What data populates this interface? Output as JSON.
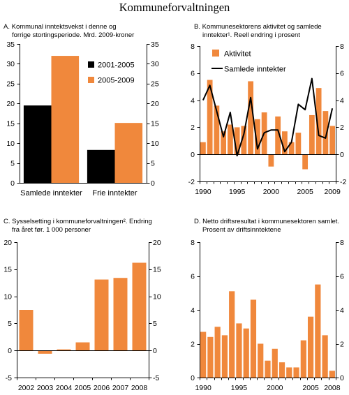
{
  "page": {
    "title": "Kommuneforvaltningen"
  },
  "chart_data": [
    {
      "type": "bar",
      "title_lines": [
        "A. Kommunal inntektsvekst i denne og",
        "forrige stortingsperiode. Mrd. 2009-kroner"
      ],
      "categories": [
        "Samlede inntekter",
        "Frie inntekter"
      ],
      "series": [
        {
          "name": "2001-2005",
          "type": "bar",
          "color": "#000000",
          "values": [
            19.5,
            8.3
          ]
        },
        {
          "name": "2005-2009",
          "type": "bar",
          "color": "#f0883c",
          "values": [
            32.0,
            15.1
          ]
        }
      ],
      "ylim": [
        0,
        35
      ],
      "yticks": [
        0,
        5,
        10,
        15,
        20,
        25,
        30,
        35
      ],
      "legend": "top-center",
      "grid": false
    },
    {
      "type": "bar",
      "title_lines": [
        "B. Kommunesektorens aktivitet og samlede",
        "inntekter¹. Reell endring i prosent"
      ],
      "x": [
        1990,
        1991,
        1992,
        1993,
        1994,
        1995,
        1996,
        1997,
        1998,
        1999,
        2000,
        2001,
        2002,
        2003,
        2004,
        2005,
        2006,
        2007,
        2008,
        2009
      ],
      "xticks": [
        1990,
        1995,
        2000,
        2005,
        2009
      ],
      "series": [
        {
          "name": "Aktivitet",
          "type": "bar",
          "color": "#f0883c",
          "values": [
            0.9,
            5.5,
            3.6,
            1.7,
            2.2,
            2.0,
            2.1,
            5.4,
            2.6,
            3.1,
            -0.9,
            2.8,
            1.7,
            0.9,
            1.6,
            -1.1,
            2.9,
            4.9,
            3.2,
            2.1
          ]
        },
        {
          "name": "Samlede inntekter",
          "type": "line",
          "color": "#000000",
          "values": [
            4.0,
            5.1,
            3.2,
            1.3,
            3.1,
            -0.1,
            1.5,
            4.2,
            0.4,
            1.6,
            1.8,
            1.8,
            0.2,
            0.9,
            3.7,
            3.3,
            5.6,
            1.4,
            1.2,
            3.4
          ]
        }
      ],
      "ylim": [
        -2,
        8
      ],
      "yticks": [
        -2,
        0,
        2,
        4,
        6,
        8
      ],
      "legend": "top-left",
      "grid": false
    },
    {
      "type": "bar",
      "title_lines": [
        "C. Sysselsetting i kommuneforvaltningen². Endring",
        "fra året før. 1 000 personer"
      ],
      "x": [
        2002,
        2003,
        2004,
        2005,
        2006,
        2007,
        2008
      ],
      "xticks": [
        2002,
        2003,
        2004,
        2005,
        2006,
        2007,
        2008
      ],
      "series": [
        {
          "type": "bar",
          "color": "#f0883c",
          "values": [
            7.5,
            -0.6,
            0.2,
            1.5,
            13.1,
            13.4,
            16.2
          ]
        }
      ],
      "ylim": [
        -5,
        20
      ],
      "yticks": [
        -5,
        0,
        5,
        10,
        15,
        20
      ],
      "grid": false
    },
    {
      "type": "bar",
      "title_lines": [
        "D. Netto driftsresultat i kommunesektoren samlet.",
        "Prosent av driftsinntektene"
      ],
      "x": [
        1990,
        1991,
        1992,
        1993,
        1994,
        1995,
        1996,
        1997,
        1998,
        1999,
        2000,
        2001,
        2002,
        2003,
        2004,
        2005,
        2006,
        2007,
        2008
      ],
      "xticks": [
        1990,
        1995,
        2000,
        2005,
        2008
      ],
      "series": [
        {
          "type": "bar",
          "color": "#f0883c",
          "values": [
            2.7,
            2.4,
            3.0,
            2.5,
            5.1,
            3.2,
            2.9,
            4.6,
            2.0,
            1.0,
            1.7,
            0.9,
            0.6,
            0.6,
            2.2,
            3.6,
            5.5,
            2.5,
            0.4
          ]
        }
      ],
      "ylim": [
        0,
        8
      ],
      "yticks": [
        0,
        2,
        4,
        6,
        8
      ],
      "grid": false
    }
  ]
}
